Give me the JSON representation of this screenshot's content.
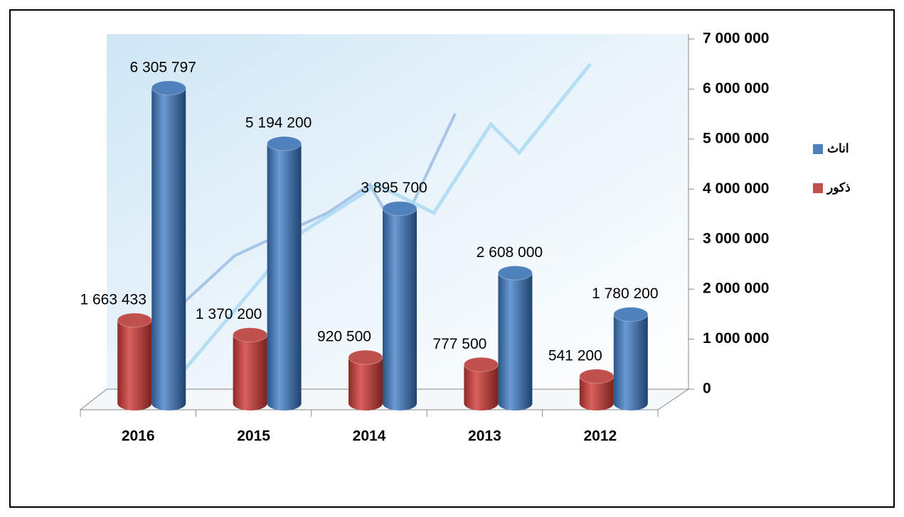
{
  "chart_data": {
    "type": "bar3d",
    "categories": [
      "2016",
      "2015",
      "2014",
      "2013",
      "2012"
    ],
    "series": [
      {
        "name": "ذكور",
        "color": "#c0504d",
        "values": [
          1663433,
          1370200,
          920500,
          777500,
          541200
        ],
        "value_labels": [
          "1 663 433",
          "1 370 200",
          "920 500",
          "777 500",
          "541 200"
        ]
      },
      {
        "name": "اناث",
        "color": "#4f81bd",
        "values": [
          6305797,
          5194200,
          3895700,
          2608000,
          1780200
        ],
        "value_labels": [
          "6 305 797",
          "5 194 200",
          "3 895 700",
          "2 608 000",
          "1 780 200"
        ]
      }
    ],
    "ylim": [
      0,
      7000000
    ],
    "yticks": [
      0,
      {
        "value": 1000000,
        "label": "1 000 000"
      },
      {
        "value": 2000000,
        "label": "2 000 000"
      },
      {
        "value": 3000000,
        "label": "3 000 000"
      },
      {
        "value": 4000000,
        "label": "4 000 000"
      },
      {
        "value": 5000000,
        "label": "5 000 000"
      },
      {
        "value": 6000000,
        "label": "6 000 000"
      },
      {
        "value": 7000000,
        "label": "7 000 000"
      }
    ],
    "grid": false
  }
}
